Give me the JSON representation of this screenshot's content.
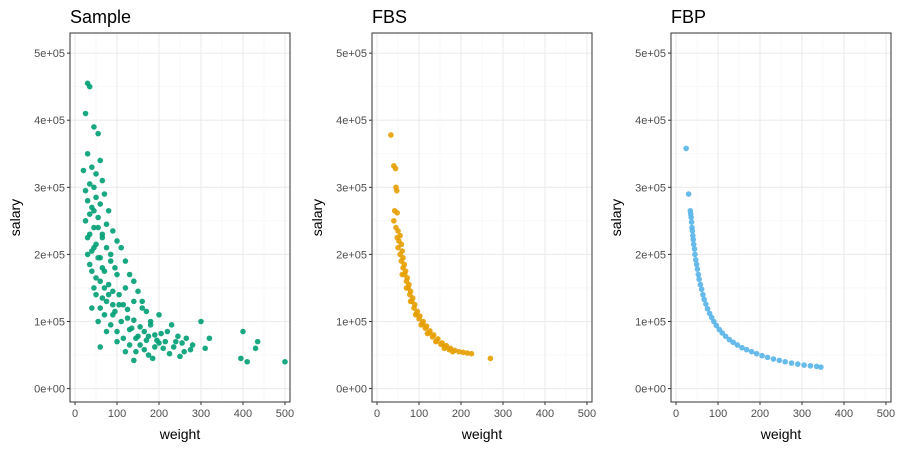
{
  "chart_data": [
    {
      "type": "scatter",
      "title": "Sample",
      "xlabel": "weight",
      "ylabel": "salary",
      "xlim": [
        -12,
        512
      ],
      "ylim": [
        -20000,
        530000
      ],
      "xticks": [
        0,
        100,
        200,
        300,
        400,
        500
      ],
      "xtick_labels": [
        "0",
        "100",
        "200",
        "300",
        "400",
        "500"
      ],
      "yticks": [
        0,
        100000,
        200000,
        300000,
        400000,
        500000
      ],
      "ytick_labels": [
        "0e+00",
        "1e+05",
        "2e+05",
        "3e+05",
        "4e+05",
        "5e+05"
      ],
      "color": "#009E73",
      "grid": true,
      "points": [
        [
          30,
          455000
        ],
        [
          35,
          450000
        ],
        [
          25,
          410000
        ],
        [
          45,
          390000
        ],
        [
          55,
          380000
        ],
        [
          30,
          350000
        ],
        [
          60,
          340000
        ],
        [
          40,
          330000
        ],
        [
          20,
          325000
        ],
        [
          50,
          320000
        ],
        [
          65,
          310000
        ],
        [
          35,
          305000
        ],
        [
          45,
          300000
        ],
        [
          25,
          295000
        ],
        [
          70,
          290000
        ],
        [
          50,
          285000
        ],
        [
          30,
          280000
        ],
        [
          60,
          275000
        ],
        [
          40,
          270000
        ],
        [
          80,
          265000
        ],
        [
          35,
          260000
        ],
        [
          55,
          255000
        ],
        [
          25,
          250000
        ],
        [
          75,
          245000
        ],
        [
          45,
          240000
        ],
        [
          90,
          235000
        ],
        [
          65,
          230000
        ],
        [
          30,
          225000
        ],
        [
          100,
          220000
        ],
        [
          50,
          215000
        ],
        [
          110,
          210000
        ],
        [
          40,
          205000
        ],
        [
          85,
          200000
        ],
        [
          60,
          195000
        ],
        [
          120,
          190000
        ],
        [
          35,
          185000
        ],
        [
          95,
          180000
        ],
        [
          70,
          175000
        ],
        [
          130,
          170000
        ],
        [
          50,
          165000
        ],
        [
          140,
          160000
        ],
        [
          80,
          155000
        ],
        [
          45,
          150000
        ],
        [
          150,
          145000
        ],
        [
          105,
          140000
        ],
        [
          65,
          135000
        ],
        [
          160,
          130000
        ],
        [
          115,
          125000
        ],
        [
          40,
          120000
        ],
        [
          170,
          115000
        ],
        [
          90,
          110000
        ],
        [
          125,
          105000
        ],
        [
          55,
          100000
        ],
        [
          180,
          95000
        ],
        [
          135,
          90000
        ],
        [
          75,
          85000
        ],
        [
          190,
          80000
        ],
        [
          145,
          75000
        ],
        [
          100,
          70000
        ],
        [
          200,
          68000
        ],
        [
          155,
          65000
        ],
        [
          60,
          62000
        ],
        [
          210,
          60000
        ],
        [
          165,
          58000
        ],
        [
          120,
          55000
        ],
        [
          225,
          52000
        ],
        [
          175,
          50000
        ],
        [
          250,
          48000
        ],
        [
          185,
          45000
        ],
        [
          140,
          42000
        ],
        [
          260,
          55000
        ],
        [
          280,
          65000
        ],
        [
          300,
          100000
        ],
        [
          320,
          75000
        ],
        [
          275,
          58000
        ],
        [
          310,
          60000
        ],
        [
          240,
          70000
        ],
        [
          230,
          95000
        ],
        [
          220,
          85000
        ],
        [
          200,
          110000
        ],
        [
          180,
          100000
        ],
        [
          160,
          120000
        ],
        [
          140,
          130000
        ],
        [
          120,
          150000
        ],
        [
          100,
          170000
        ],
        [
          85,
          190000
        ],
        [
          75,
          210000
        ],
        [
          65,
          225000
        ],
        [
          55,
          240000
        ],
        [
          45,
          265000
        ],
        [
          400,
          85000
        ],
        [
          395,
          45000
        ],
        [
          410,
          40000
        ],
        [
          430,
          60000
        ],
        [
          435,
          70000
        ],
        [
          500,
          40000
        ],
        [
          75,
          130000
        ],
        [
          95,
          115000
        ],
        [
          110,
          100000
        ],
        [
          130,
          88000
        ],
        [
          150,
          78000
        ],
        [
          170,
          72000
        ],
        [
          190,
          62000
        ],
        [
          60,
          160000
        ],
        [
          70,
          150000
        ],
        [
          80,
          140000
        ],
        [
          90,
          145000
        ],
        [
          40,
          175000
        ],
        [
          35,
          230000
        ],
        [
          45,
          210000
        ],
        [
          55,
          195000
        ],
        [
          65,
          180000
        ],
        [
          30,
          200000
        ],
        [
          50,
          140000
        ],
        [
          60,
          120000
        ],
        [
          70,
          110000
        ],
        [
          85,
          95000
        ],
        [
          100,
          85000
        ],
        [
          115,
          75000
        ],
        [
          130,
          65000
        ],
        [
          145,
          55000
        ],
        [
          90,
          125000
        ],
        [
          105,
          125000
        ],
        [
          125,
          118000
        ],
        [
          140,
          102000
        ],
        [
          155,
          92000
        ],
        [
          165,
          85000
        ],
        [
          175,
          78000
        ],
        [
          195,
          72000
        ],
        [
          205,
          82000
        ],
        [
          215,
          70000
        ],
        [
          235,
          62000
        ],
        [
          245,
          78000
        ],
        [
          255,
          68000
        ],
        [
          265,
          75000
        ]
      ]
    },
    {
      "type": "scatter",
      "title": "FBS",
      "xlabel": "weight",
      "ylabel": "salary",
      "xlim": [
        -12,
        512
      ],
      "ylim": [
        -20000,
        530000
      ],
      "xticks": [
        0,
        100,
        200,
        300,
        400,
        500
      ],
      "xtick_labels": [
        "0",
        "100",
        "200",
        "300",
        "400",
        "500"
      ],
      "yticks": [
        0,
        100000,
        200000,
        300000,
        400000,
        500000
      ],
      "ytick_labels": [
        "0e+00",
        "1e+05",
        "2e+05",
        "3e+05",
        "4e+05",
        "5e+05"
      ],
      "color": "#E69F00",
      "grid": true,
      "points": [
        [
          33,
          378000
        ],
        [
          40,
          332000
        ],
        [
          44,
          328000
        ],
        [
          45,
          300000
        ],
        [
          47,
          295000
        ],
        [
          42,
          265000
        ],
        [
          48,
          262000
        ],
        [
          40,
          250000
        ],
        [
          45,
          240000
        ],
        [
          50,
          235000
        ],
        [
          55,
          228000
        ],
        [
          48,
          225000
        ],
        [
          52,
          220000
        ],
        [
          58,
          215000
        ],
        [
          50,
          210000
        ],
        [
          60,
          205000
        ],
        [
          55,
          200000
        ],
        [
          62,
          195000
        ],
        [
          58,
          190000
        ],
        [
          65,
          185000
        ],
        [
          62,
          180000
        ],
        [
          68,
          175000
        ],
        [
          66,
          170000
        ],
        [
          72,
          165000
        ],
        [
          70,
          160000
        ],
        [
          76,
          155000
        ],
        [
          74,
          150000
        ],
        [
          80,
          145000
        ],
        [
          78,
          140000
        ],
        [
          85,
          135000
        ],
        [
          83,
          130000
        ],
        [
          90,
          125000
        ],
        [
          88,
          120000
        ],
        [
          96,
          115000
        ],
        [
          94,
          112000
        ],
        [
          102,
          108000
        ],
        [
          100,
          104000
        ],
        [
          110,
          100000
        ],
        [
          108,
          97000
        ],
        [
          118,
          93000
        ],
        [
          115,
          90000
        ],
        [
          126,
          86000
        ],
        [
          124,
          83000
        ],
        [
          135,
          80000
        ],
        [
          132,
          77000
        ],
        [
          145,
          74000
        ],
        [
          142,
          71000
        ],
        [
          155,
          68000
        ],
        [
          152,
          66000
        ],
        [
          165,
          64000
        ],
        [
          162,
          62000
        ],
        [
          175,
          60000
        ],
        [
          172,
          58000
        ],
        [
          185,
          57000
        ],
        [
          195,
          55000
        ],
        [
          205,
          54000
        ],
        [
          215,
          53000
        ],
        [
          225,
          52000
        ],
        [
          270,
          45000
        ],
        [
          60,
          170000
        ],
        [
          70,
          150000
        ],
        [
          80,
          130000
        ],
        [
          92,
          110000
        ],
        [
          105,
          95000
        ],
        [
          120,
          82000
        ],
        [
          140,
          70000
        ],
        [
          160,
          60000
        ],
        [
          180,
          55000
        ]
      ]
    },
    {
      "type": "scatter",
      "title": "FBP",
      "xlabel": "weight",
      "ylabel": "salary",
      "xlim": [
        -12,
        512
      ],
      "ylim": [
        -20000,
        530000
      ],
      "xticks": [
        0,
        100,
        200,
        300,
        400,
        500
      ],
      "xtick_labels": [
        "0",
        "100",
        "200",
        "300",
        "400",
        "500"
      ],
      "yticks": [
        0,
        100000,
        200000,
        300000,
        400000,
        500000
      ],
      "ytick_labels": [
        "0e+00",
        "1e+05",
        "2e+05",
        "3e+05",
        "4e+05",
        "5e+05"
      ],
      "color": "#56B4E9",
      "grid": true,
      "points": [
        [
          24,
          358000
        ],
        [
          30,
          290000
        ],
        [
          34,
          265000
        ],
        [
          35,
          260000
        ],
        [
          36,
          255000
        ],
        [
          37,
          248000
        ],
        [
          38,
          240000
        ],
        [
          39,
          235000
        ],
        [
          40,
          228000
        ],
        [
          41,
          222000
        ],
        [
          42,
          215000
        ],
        [
          44,
          208000
        ],
        [
          45,
          200000
        ],
        [
          47,
          192000
        ],
        [
          49,
          185000
        ],
        [
          51,
          178000
        ],
        [
          53,
          170000
        ],
        [
          55,
          163000
        ],
        [
          58,
          155000
        ],
        [
          61,
          148000
        ],
        [
          64,
          140000
        ],
        [
          67,
          133000
        ],
        [
          71,
          126000
        ],
        [
          75,
          119000
        ],
        [
          80,
          112000
        ],
        [
          85,
          106000
        ],
        [
          90,
          100000
        ],
        [
          96,
          94000
        ],
        [
          103,
          88000
        ],
        [
          110,
          83000
        ],
        [
          118,
          78000
        ],
        [
          127,
          73000
        ],
        [
          136,
          69000
        ],
        [
          146,
          65000
        ],
        [
          157,
          61000
        ],
        [
          168,
          58000
        ],
        [
          180,
          55000
        ],
        [
          192,
          52000
        ],
        [
          205,
          49000
        ],
        [
          218,
          46500
        ],
        [
          232,
          44000
        ],
        [
          246,
          42000
        ],
        [
          260,
          40000
        ],
        [
          275,
          38000
        ],
        [
          290,
          36500
        ],
        [
          305,
          35000
        ],
        [
          320,
          34000
        ],
        [
          335,
          33000
        ],
        [
          345,
          32000
        ]
      ]
    }
  ]
}
